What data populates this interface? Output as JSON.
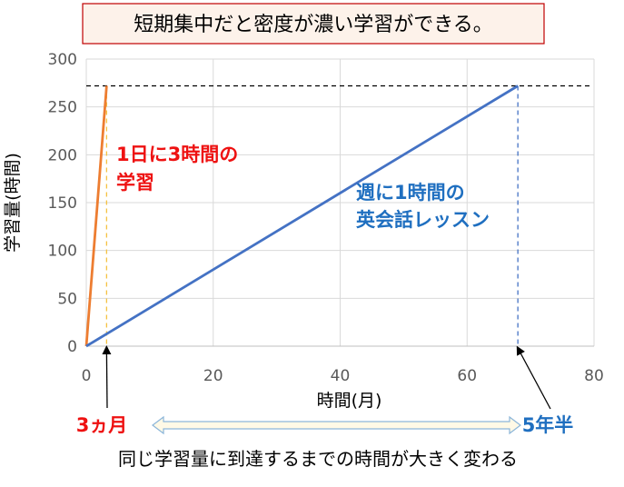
{
  "title": "短期集中だと密度が濃い学習ができる。",
  "footer": "同じ学習量に到達するまでの時間が大きく変わる",
  "colors": {
    "intensive": "#ed7d31",
    "weekly": "#4472c4",
    "red_text": "#ee1111",
    "blue_text": "#1f6fc0",
    "title_border": "#c00000",
    "title_bg": "#fdf2ea",
    "arrow_fill": "#fff9e6",
    "arrow_stroke": "#8cb6d9"
  },
  "chart_data": {
    "type": "line",
    "xlabel": "時間(月)",
    "ylabel": "学習量(時間)",
    "xlim": [
      0,
      80
    ],
    "ylim": [
      0,
      300
    ],
    "xticks": [
      0,
      20,
      40,
      60,
      80
    ],
    "yticks": [
      0,
      50,
      100,
      150,
      200,
      250,
      300
    ],
    "grid": true,
    "series": [
      {
        "key": "intensive",
        "points": [
          [
            0,
            0
          ],
          [
            3.2,
            272
          ]
        ]
      },
      {
        "key": "weekly",
        "points": [
          [
            0,
            0
          ],
          [
            68,
            272
          ]
        ]
      }
    ],
    "target_level": 272,
    "markers": [
      {
        "key": "intensive",
        "x": 3.2,
        "label": "3ヵ月"
      },
      {
        "key": "weekly",
        "x": 68,
        "label": "5年半"
      }
    ],
    "annotations": {
      "intensive": [
        "1日に3時間の",
        "学習"
      ],
      "weekly": [
        "週に1時間の",
        "英会話レッスン"
      ]
    }
  }
}
